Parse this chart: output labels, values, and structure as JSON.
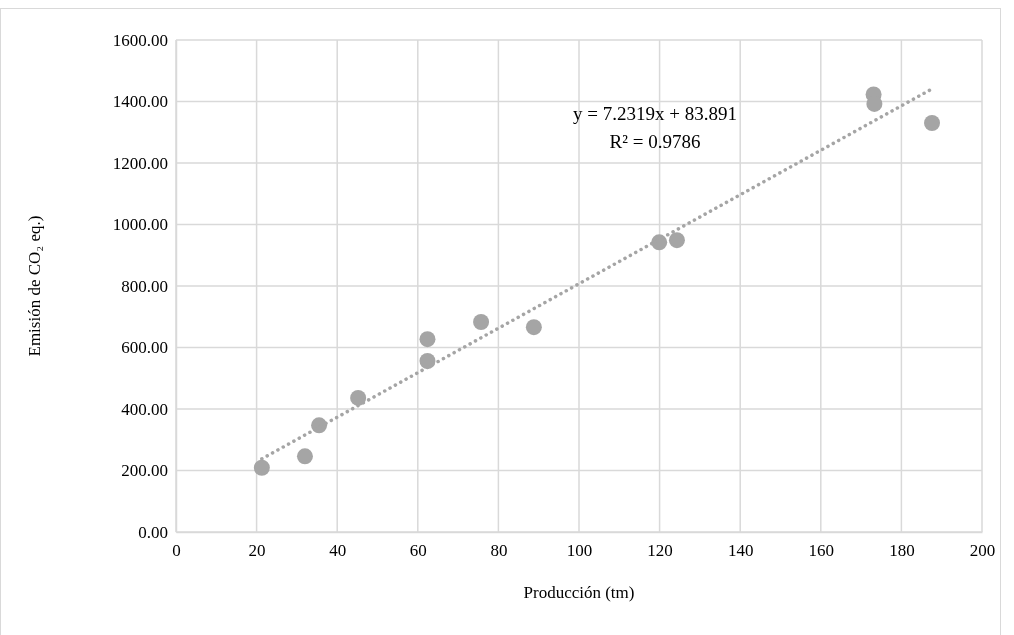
{
  "chart_data": {
    "type": "scatter",
    "xlabel": "Producción (tm)",
    "ylabel": "Emisión de CO₂ eq.)",
    "xlim": [
      0,
      200
    ],
    "xticks": [
      0,
      20,
      40,
      60,
      80,
      100,
      120,
      140,
      160,
      180,
      200
    ],
    "ylim": [
      0,
      1600
    ],
    "yticks": [
      {
        "value": 0,
        "label": "0.00"
      },
      {
        "value": 200,
        "label": "200.00"
      },
      {
        "value": 400,
        "label": "400.00"
      },
      {
        "value": 600,
        "label": "600.00"
      },
      {
        "value": 800,
        "label": "800.00"
      },
      {
        "value": 1000,
        "label": "1000.00"
      },
      {
        "value": 1200,
        "label": "1200.00"
      },
      {
        "value": 1400,
        "label": "1400.00"
      },
      {
        "value": 1600,
        "label": "1600.00"
      }
    ],
    "grid": true,
    "series": [
      {
        "color": "#a5a5a5",
        "marker": "circle",
        "x": [
          21.3,
          32.0,
          35.5,
          45.2,
          62.4,
          62.4,
          75.7,
          88.8,
          119.9,
          124.3,
          173.1,
          173.3,
          187.6
        ],
        "values": [
          209,
          246,
          347,
          436,
          556,
          627,
          683,
          666,
          942,
          949,
          1423,
          1392,
          1330
        ]
      },
      {
        "type": "line",
        "color": "#a5a5a5",
        "line_style": "dotted",
        "marker": "none",
        "x": [
          21.3,
          187.6
        ],
        "values": [
          238,
          1441
        ]
      }
    ],
    "annotations": [
      "y = 7.2319x + 83.891",
      "R² = 0.9786"
    ]
  }
}
